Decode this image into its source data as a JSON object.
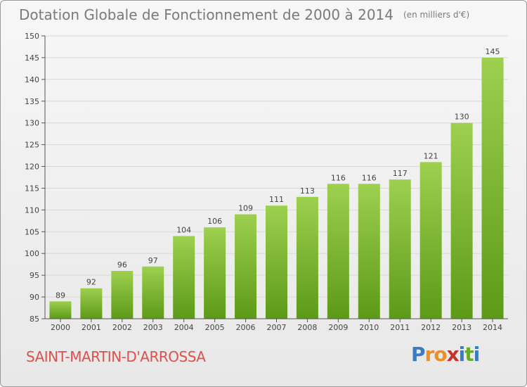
{
  "title": "Dotation Globale de Fonctionnement de 2000 à 2014",
  "unit": "(en milliers d'€)",
  "commune": "SAINT-MARTIN-D'ARROSSA",
  "logo": {
    "letters": [
      "P",
      "r",
      "o",
      "x",
      "i",
      "t",
      "i"
    ],
    "colors": [
      "#3a7cc4",
      "#e8902a",
      "#e8902a",
      "#c8302a",
      "#3a7cc4",
      "#6aaa2a",
      "#3a7cc4"
    ]
  },
  "colors": {
    "bar_top": "#9dd04e",
    "bar_bottom": "#5c9a18",
    "grid": "#d8d8d8",
    "axis": "#555555"
  },
  "chart_data": {
    "type": "bar",
    "categories": [
      "2000",
      "2001",
      "2002",
      "2003",
      "2004",
      "2005",
      "2006",
      "2007",
      "2008",
      "2009",
      "2010",
      "2011",
      "2012",
      "2013",
      "2014"
    ],
    "values": [
      89,
      92,
      96,
      97,
      104,
      106,
      109,
      111,
      113,
      116,
      116,
      117,
      121,
      130,
      145
    ],
    "ylim": [
      85,
      150
    ],
    "yticks": [
      85,
      90,
      95,
      100,
      105,
      110,
      115,
      120,
      125,
      130,
      135,
      140,
      145,
      150
    ],
    "grid": true,
    "data_labels": true
  }
}
